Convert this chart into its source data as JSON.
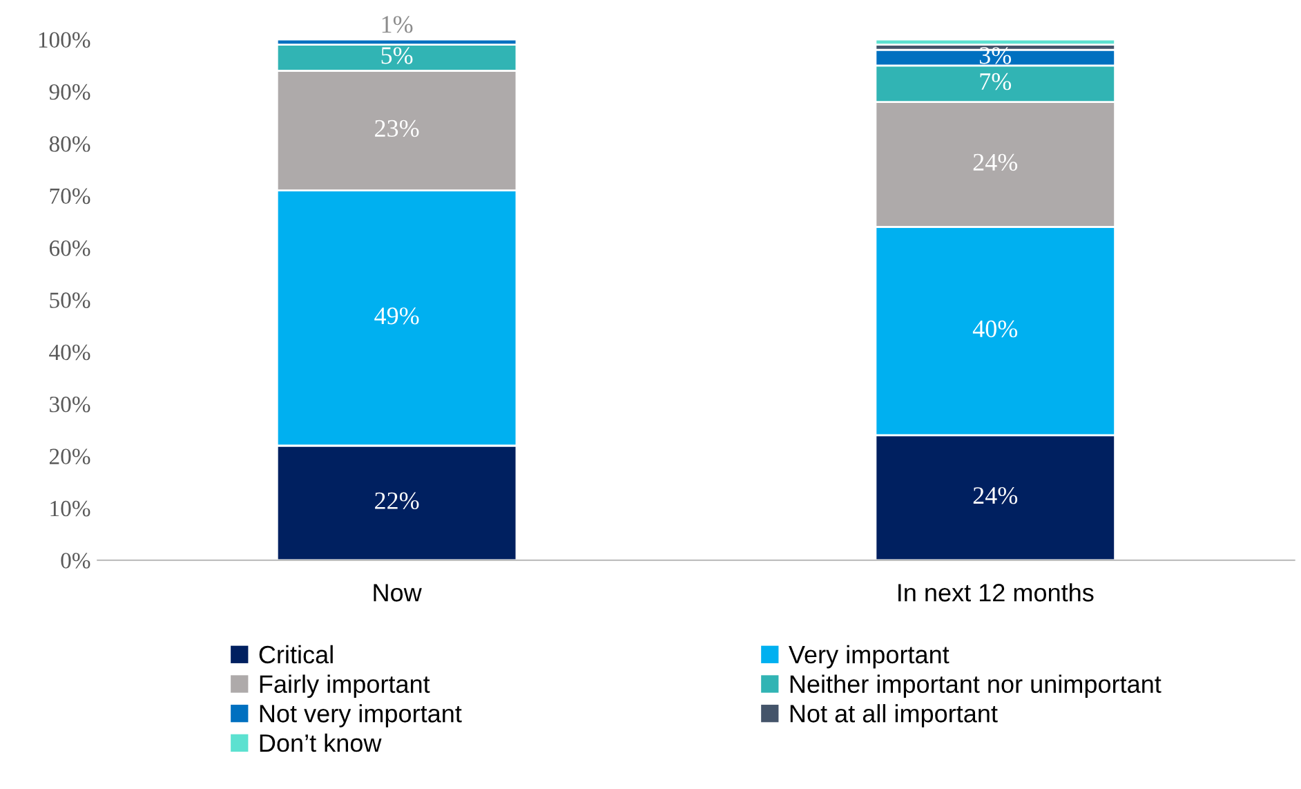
{
  "chart_data": {
    "type": "bar",
    "stacked": true,
    "categories": [
      "Now",
      "In next 12 months"
    ],
    "series": [
      {
        "name": "Critical",
        "color": "#002060",
        "values": [
          22,
          24
        ],
        "value_labels": [
          "22%",
          "24%"
        ]
      },
      {
        "name": "Very important",
        "color": "#00b0f0",
        "values": [
          49,
          40
        ],
        "value_labels": [
          "49%",
          "40%"
        ]
      },
      {
        "name": "Fairly important",
        "color": "#aeaaaa",
        "values": [
          23,
          24
        ],
        "value_labels": [
          "23%",
          "24%"
        ]
      },
      {
        "name": "Neither important nor unimportant",
        "color": "#31b4b4",
        "values": [
          5,
          7
        ],
        "value_labels": [
          "5%",
          "7%"
        ]
      },
      {
        "name": "Not very important",
        "color": "#0070c0",
        "values": [
          1,
          3
        ],
        "value_labels": [
          "1%",
          "3%"
        ]
      },
      {
        "name": "Not at all important",
        "color": "#44546a",
        "values": [
          null,
          1
        ],
        "value_labels": [
          null,
          null
        ]
      },
      {
        "name": "Don’t know",
        "color": "#5ce1d0",
        "values": [
          null,
          1
        ],
        "value_labels": [
          null,
          null
        ]
      }
    ],
    "ylim": [
      0,
      100
    ],
    "yticks": [
      {
        "value": 0,
        "label": "0%"
      },
      {
        "value": 10,
        "label": "10%"
      },
      {
        "value": 20,
        "label": "20%"
      },
      {
        "value": 30,
        "label": "30%"
      },
      {
        "value": 40,
        "label": "40%"
      },
      {
        "value": 50,
        "label": "50%"
      },
      {
        "value": 60,
        "label": "60%"
      },
      {
        "value": 70,
        "label": "70%"
      },
      {
        "value": 80,
        "label": "80%"
      },
      {
        "value": 90,
        "label": "90%"
      },
      {
        "value": 100,
        "label": "100%"
      }
    ],
    "grid": false,
    "legend": "bottom"
  }
}
